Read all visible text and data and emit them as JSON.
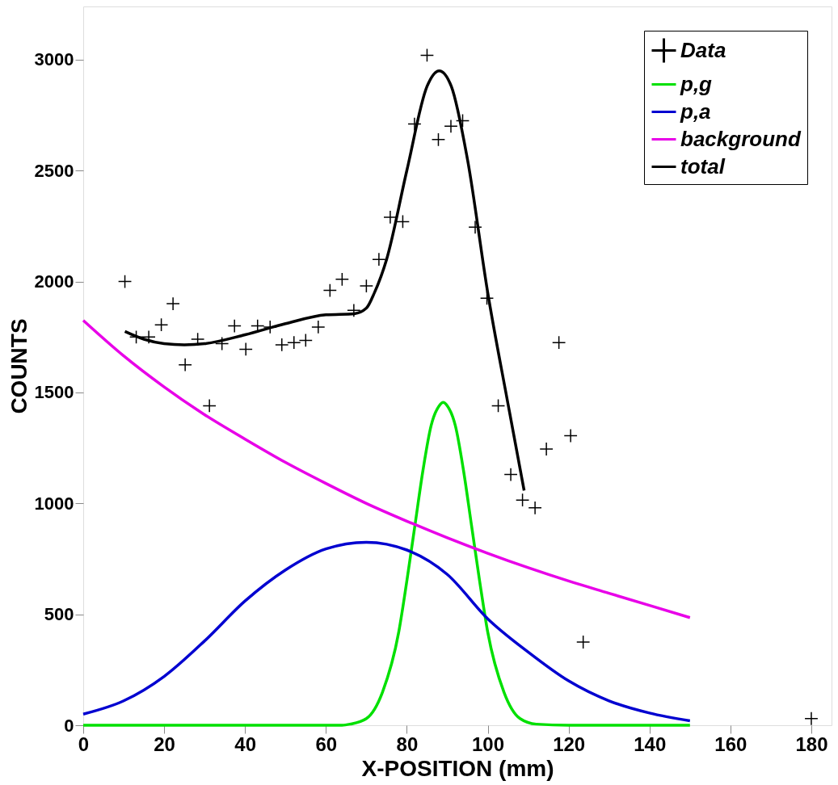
{
  "chart_data": {
    "type": "line",
    "xlabel": "X-POSITION (mm)",
    "ylabel": "COUNTS",
    "xlim": [
      0,
      185
    ],
    "ylim": [
      0,
      3240
    ],
    "xticks": [
      0,
      20,
      40,
      60,
      80,
      100,
      120,
      140,
      160,
      180
    ],
    "yticks": [
      0,
      500,
      1000,
      1500,
      2000,
      2500,
      3000
    ],
    "grid": false,
    "legend": "top right",
    "series": [
      {
        "name": "Data",
        "type": "scatter",
        "marker": "cross",
        "color": "#000000",
        "x": [
          10.3,
          13.1,
          16.2,
          19.3,
          22.2,
          25.2,
          28.3,
          31.2,
          34.3,
          37.4,
          40.2,
          43.1,
          46.2,
          49.1,
          52.1,
          55,
          58.1,
          61,
          64,
          66.9,
          70,
          73.1,
          75.9,
          79,
          81.9,
          85,
          87.8,
          90.9,
          93.8,
          96.9,
          99.8,
          102.6,
          105.7,
          108.6,
          111.7,
          114.5,
          117.6,
          120.5,
          123.6,
          180
        ],
        "values": [
          2000,
          1750,
          1750,
          1805,
          1900,
          1625,
          1740,
          1440,
          1720,
          1800,
          1695,
          1800,
          1795,
          1715,
          1725,
          1735,
          1795,
          1960,
          2010,
          1870,
          1980,
          2100,
          2290,
          2270,
          2710,
          3020,
          2640,
          2700,
          2725,
          2245,
          1925,
          1440,
          1130,
          1015,
          980,
          1245,
          1725,
          1305,
          375,
          30
        ]
      },
      {
        "name": "p,g",
        "type": "line",
        "color": "#00e000",
        "x": [
          0,
          20,
          40,
          60,
          64,
          66,
          70,
          74,
          78,
          80,
          82,
          84,
          86,
          88,
          89,
          90,
          92,
          94,
          96,
          98,
          100,
          104,
          108,
          112,
          120,
          150
        ],
        "values": [
          0,
          0,
          0,
          0,
          0,
          5,
          30,
          150,
          420,
          650,
          900,
          1150,
          1350,
          1440,
          1455,
          1440,
          1350,
          1150,
          900,
          650,
          420,
          150,
          30,
          5,
          0,
          0
        ]
      },
      {
        "name": "p,a",
        "type": "line",
        "color": "#0000d0",
        "x": [
          0,
          10,
          20,
          30,
          40,
          50,
          60,
          70,
          80,
          90,
          100,
          110,
          120,
          130,
          140,
          150
        ],
        "values": [
          50,
          110,
          220,
          380,
          560,
          700,
          795,
          825,
          790,
          680,
          480,
          330,
          200,
          110,
          55,
          20
        ]
      },
      {
        "name": "background",
        "type": "line",
        "color": "#e800e8",
        "x": [
          0,
          10,
          20,
          30,
          40,
          50,
          60,
          70,
          80,
          90,
          100,
          110,
          120,
          130,
          140,
          150
        ],
        "values": [
          1825,
          1665,
          1525,
          1400,
          1290,
          1185,
          1090,
          1000,
          920,
          845,
          775,
          710,
          650,
          595,
          540,
          485
        ]
      },
      {
        "name": "total",
        "type": "line",
        "color": "#000000",
        "x": [
          10.3,
          15,
          20,
          25,
          30,
          40,
          50,
          60,
          67,
          70,
          72,
          75,
          80,
          85,
          88,
          91,
          95,
          100,
          105,
          109
        ],
        "values": [
          1775,
          1740,
          1720,
          1715,
          1720,
          1760,
          1810,
          1850,
          1855,
          1880,
          1950,
          2100,
          2500,
          2880,
          2950,
          2880,
          2550,
          1950,
          1450,
          1058
        ]
      }
    ]
  }
}
